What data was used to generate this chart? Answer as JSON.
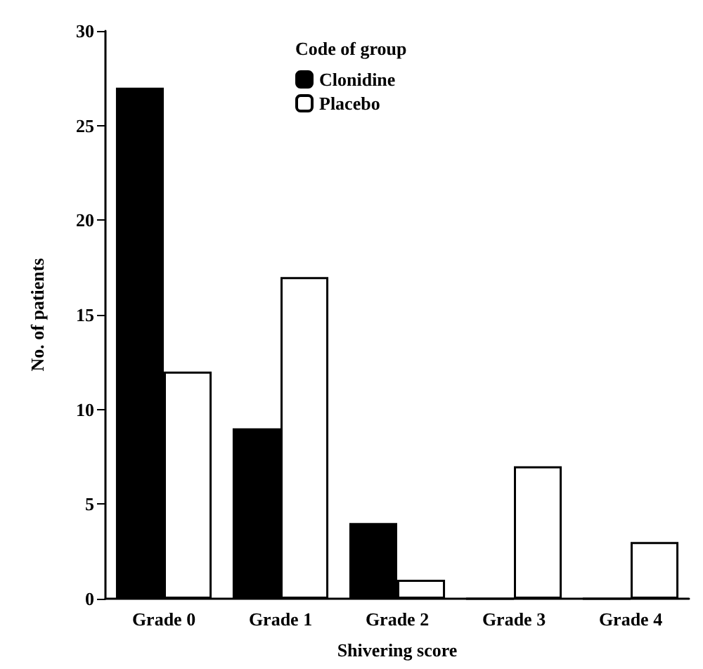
{
  "chart_data": {
    "type": "bar",
    "xlabel": "Shivering score",
    "ylabel": "No. of patients",
    "legend_title": "Code of group",
    "categories": [
      "Grade 0",
      "Grade 1",
      "Grade 2",
      "Grade 3",
      "Grade 4"
    ],
    "series": [
      {
        "name": "Clonidine",
        "color": "#000000",
        "values": [
          27,
          9,
          4,
          0,
          0
        ]
      },
      {
        "name": "Placebo",
        "color": "#ffffff",
        "values": [
          12,
          17,
          1,
          7,
          3
        ]
      }
    ],
    "ylim": [
      0,
      30
    ],
    "yticks": [
      0,
      5,
      10,
      15,
      20,
      25,
      30
    ],
    "grid": false,
    "legend": "top"
  }
}
